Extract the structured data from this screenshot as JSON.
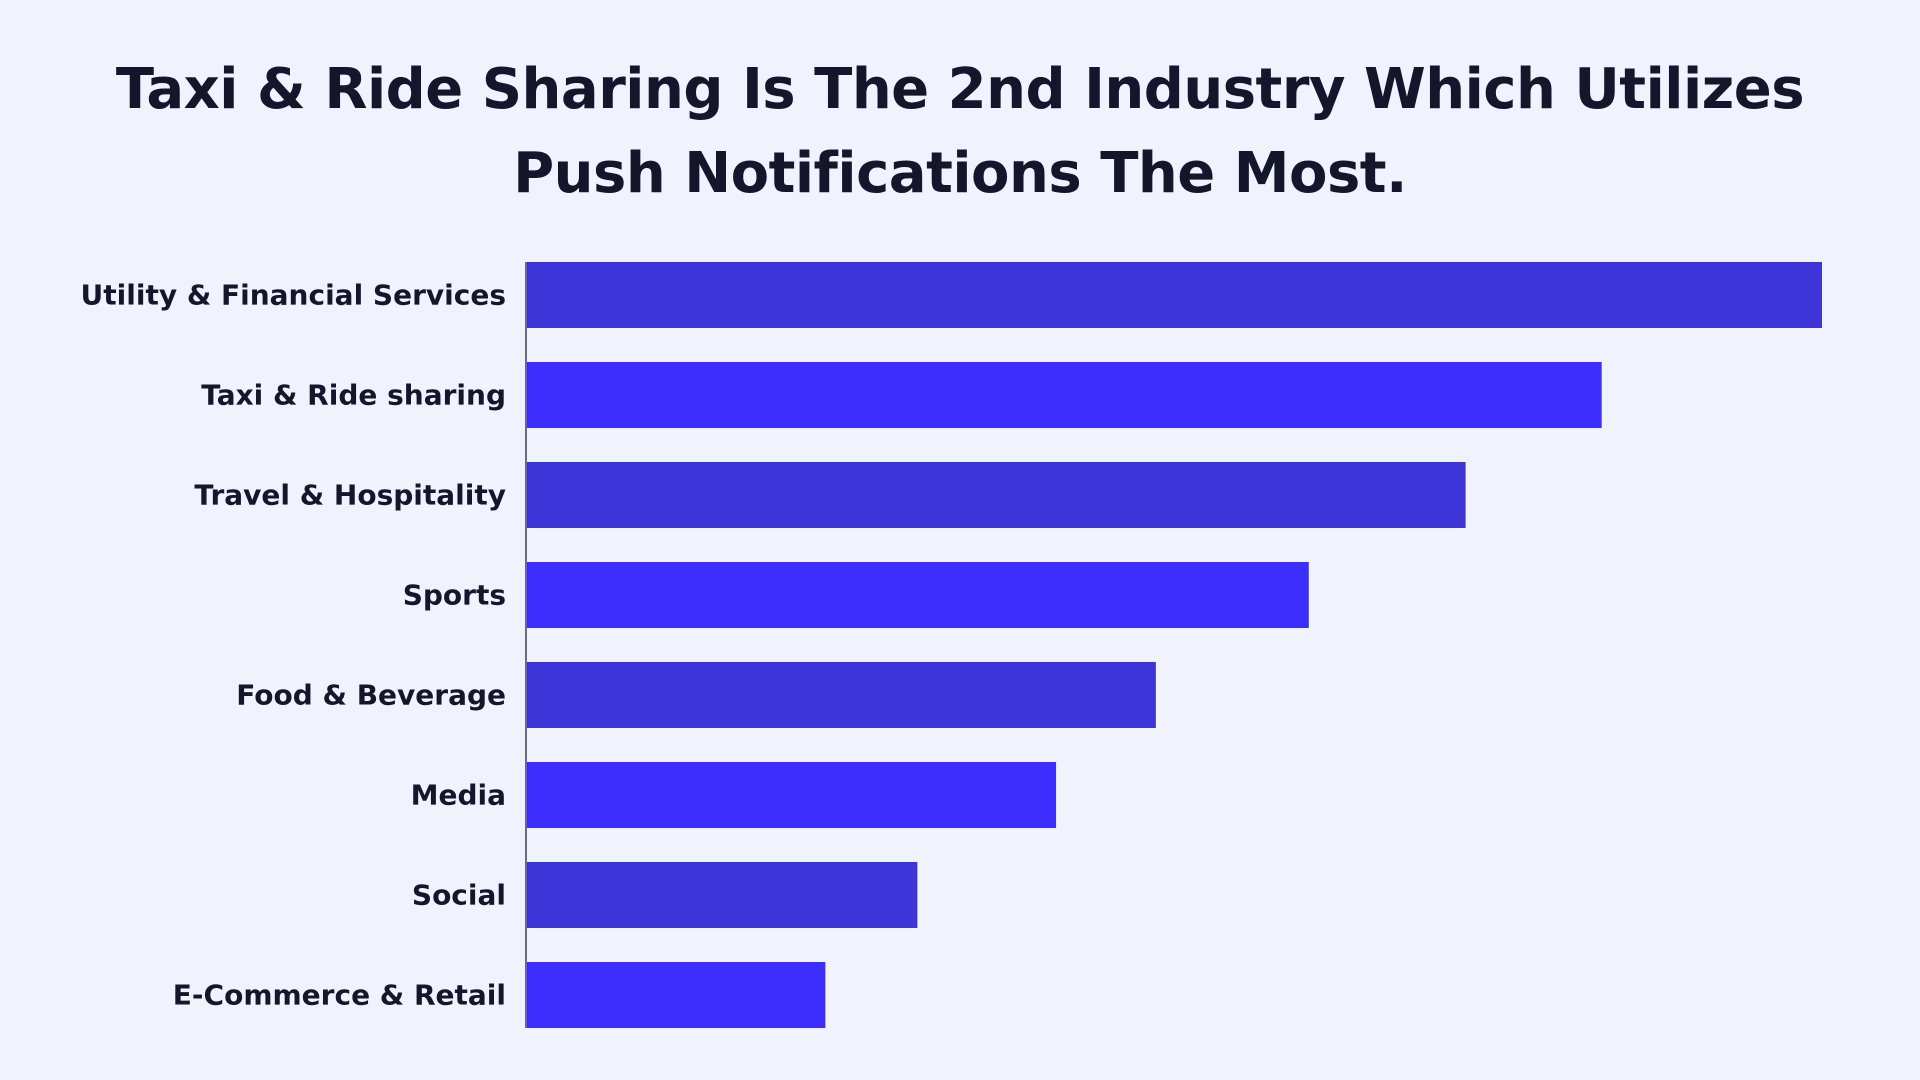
{
  "colors": {
    "background": "#f0f2fe",
    "bar_dark": "#3d35d8",
    "bar_bright": "#3c2eff",
    "axis": "#6b6b78",
    "text": "#14172b"
  },
  "chart_data": {
    "type": "bar",
    "orientation": "horizontal",
    "title": "Taxi & Ride Sharing Is The 2nd Industry Which Utilizes Push Notifications The Most.",
    "categories": [
      "Utility & Financial Services",
      "Taxi & Ride sharing",
      "Travel & Hospitality",
      "Sports",
      "Food & Beverage",
      "Media",
      "Social",
      "E-Commerce & Retail"
    ],
    "values": [
      100,
      83,
      72.5,
      60.4,
      48.6,
      40.9,
      30.2,
      23.1
    ],
    "xlabel": "",
    "ylabel": "",
    "xlim": [
      0,
      100
    ],
    "grid": false,
    "legend": "none"
  }
}
